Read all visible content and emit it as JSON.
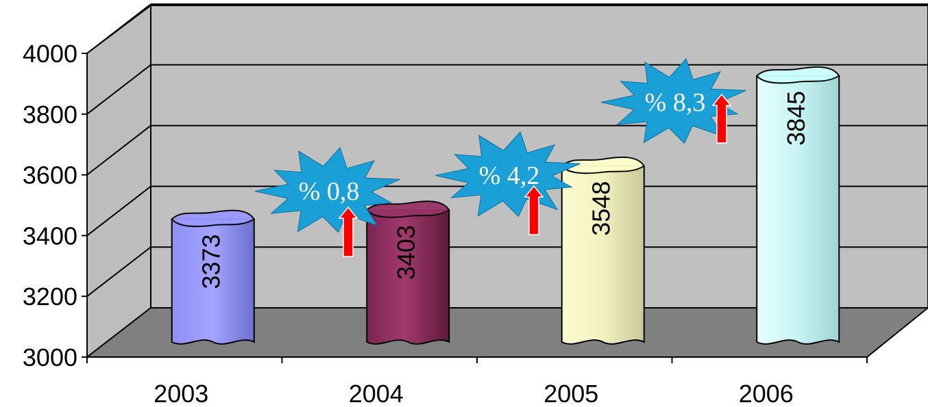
{
  "chart_data": {
    "type": "bar",
    "title": "",
    "xlabel": "",
    "ylabel": "",
    "categories": [
      "2003",
      "2004",
      "2005",
      "2006"
    ],
    "values": [
      3373,
      3403,
      3548,
      3845
    ],
    "value_labels": [
      "3373",
      "3403",
      "3548",
      "3845"
    ],
    "ylim": [
      3000,
      4000
    ],
    "yticks": [
      "3000",
      "3200",
      "3400",
      "3600",
      "3800",
      "4000"
    ],
    "grid": true,
    "legend": "none",
    "bar_colors": [
      "#9999ff",
      "#993366",
      "#ffffcc",
      "#ccffff"
    ],
    "annotations": [
      "% 0,8",
      "% 4,2",
      "% 8,3"
    ],
    "annotation_color": "#1a9fd6",
    "arrow_color": "#ff0000",
    "wall_color": "#c0c0c0",
    "floor_color": "#808080"
  }
}
